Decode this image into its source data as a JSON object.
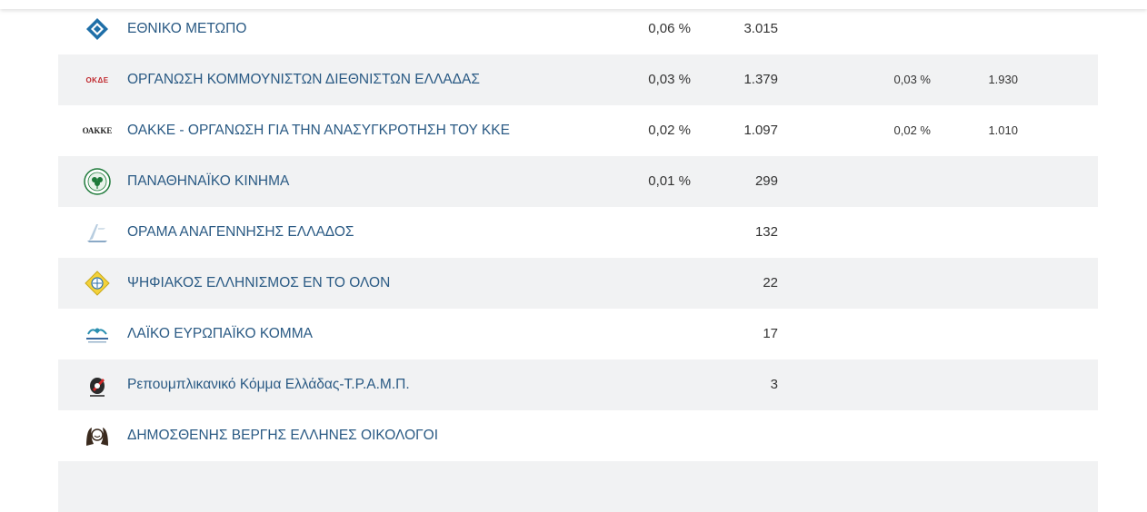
{
  "parties": [
    {
      "name": "ΕΘΝΙΚΟ ΜΕΤΩΠΟ",
      "logo": "ethniko-metopo-logo",
      "pct": "0,06 %",
      "votes": "3.015",
      "pct2": "",
      "votes2": ""
    },
    {
      "name": "ΟΡΓΑΝΩΣΗ ΚΟΜΜΟΥΝΙΣΤΩΝ ΔΙΕΘΝΙΣΤΩΝ ΕΛΛΑΔΑΣ",
      "logo": "okde-logo",
      "logo_text": "ΟΚΔΕ",
      "pct": "0,03 %",
      "votes": "1.379",
      "pct2": "0,03 %",
      "votes2": "1.930"
    },
    {
      "name": "ΟΑΚΚΕ - ΟΡΓΑΝΩΣΗ ΓΙΑ ΤΗΝ ΑΝΑΣΥΓΚΡΟΤΗΣΗ ΤΟΥ ΚΚΕ",
      "logo": "oakke-logo",
      "logo_text": "ΟΑΚΚΕ",
      "pct": "0,02 %",
      "votes": "1.097",
      "pct2": "0,02 %",
      "votes2": "1.010"
    },
    {
      "name": "ΠΑΝΑΘΗΝΑΪΚΟ ΚΙΝΗΜΑ",
      "logo": "panathinaiko-kinima-logo",
      "pct": "0,01 %",
      "votes": "299",
      "pct2": "",
      "votes2": ""
    },
    {
      "name": "ΟΡΑΜΑ ΑΝΑΓΕΝΝΗΣΗΣ ΕΛΛΑΔΟΣ",
      "logo": "orama-logo",
      "pct": "",
      "votes": "132",
      "pct2": "",
      "votes2": ""
    },
    {
      "name": "ΨΗΦΙΑΚΟΣ ΕΛΛΗΝΙΣΜΟΣ ΕΝ ΤΟ ΟΛΟΝ",
      "logo": "psifiakos-ellinismos-logo",
      "pct": "",
      "votes": "22",
      "pct2": "",
      "votes2": ""
    },
    {
      "name": "ΛΑΪΚΟ ΕΥΡΩΠΑΪΚΟ ΚΟΜΜΑ",
      "logo": "laiko-evropaiko-logo",
      "pct": "",
      "votes": "17",
      "pct2": "",
      "votes2": ""
    },
    {
      "name": "Ρεπουμπλικανικό Κόμμα Ελλάδας-Τ.Ρ.Α.Μ.Π.",
      "logo": "tramp-logo",
      "pct": "",
      "votes": "3",
      "pct2": "",
      "votes2": ""
    },
    {
      "name": "ΔΗΜΟΣΘΕΝΗΣ ΒΕΡΓΗΣ ΕΛΛΗΝΕΣ ΟΙΚΟΛΟΓΟΙ",
      "logo": "ellines-oikologoi-logo",
      "pct": "",
      "votes": "",
      "pct2": "",
      "votes2": ""
    },
    {
      "name": "",
      "logo": "",
      "pct": "",
      "votes": "",
      "pct2": "",
      "votes2": ""
    }
  ],
  "colors": {
    "party_name": "#2a5a84",
    "row_shade": "#f1f2f3",
    "text": "#333333"
  }
}
